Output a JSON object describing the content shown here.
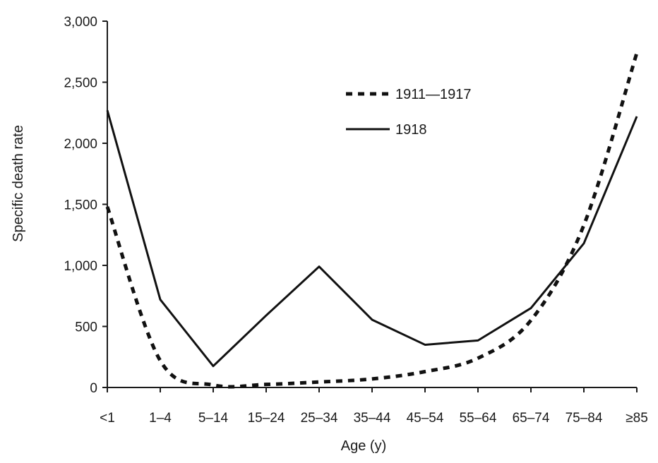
{
  "chart_data": {
    "type": "line",
    "categories": [
      "<1",
      "1–4",
      "5–14",
      "15–24",
      "25–34",
      "35–44",
      "45–54",
      "55–64",
      "65–74",
      "75–84",
      "≥85"
    ],
    "series": [
      {
        "name": "1911—1917",
        "style": "dashed",
        "color": "#111111",
        "values": [
          1480,
          220,
          20,
          25,
          45,
          70,
          130,
          240,
          550,
          1330,
          2740
        ]
      },
      {
        "name": "1918",
        "style": "solid",
        "color": "#111111",
        "values": [
          2270,
          720,
          175,
          590,
          990,
          555,
          350,
          385,
          650,
          1180,
          2220
        ]
      }
    ],
    "xlabel": "Age (y)",
    "ylabel": "Specific death rate",
    "ylim": [
      0,
      3000
    ],
    "yticks": [
      0,
      500,
      1000,
      1500,
      2000,
      2500,
      3000
    ],
    "ytick_labels": [
      "0",
      "500",
      "1,000",
      "1,500",
      "2,000",
      "2,500",
      "3,000"
    ],
    "grid": false,
    "legend_position": "top-right"
  }
}
